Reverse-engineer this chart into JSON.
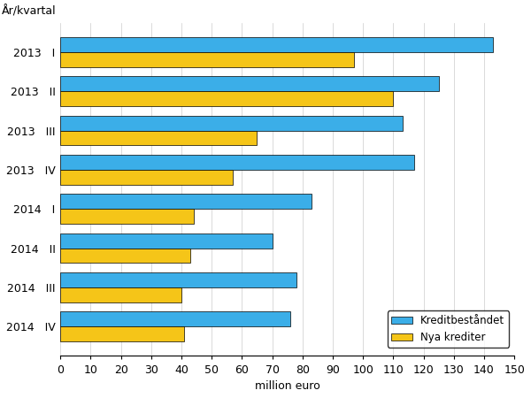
{
  "title_ylabel": "År/kvartal",
  "xlabel": "million euro",
  "categories": [
    [
      "2013",
      "I"
    ],
    [
      "2013",
      "II"
    ],
    [
      "2013",
      "III"
    ],
    [
      "2013",
      "IV"
    ],
    [
      "2014",
      "I"
    ],
    [
      "2014",
      "II"
    ],
    [
      "2014",
      "III"
    ],
    [
      "2014",
      "IV"
    ]
  ],
  "kreditbestandet": [
    143,
    125,
    113,
    117,
    83,
    70,
    78,
    76
  ],
  "nya_krediter": [
    97,
    110,
    65,
    57,
    44,
    43,
    40,
    41
  ],
  "color_blue": "#3BAEE8",
  "color_yellow": "#F5C518",
  "legend_labels": [
    "Kreditbeståndet",
    "Nya krediter"
  ],
  "xlim": [
    0,
    150
  ],
  "xticks": [
    0,
    10,
    20,
    30,
    40,
    50,
    60,
    70,
    80,
    90,
    100,
    110,
    120,
    130,
    140,
    150
  ],
  "figsize": [
    6.0,
    4.5
  ],
  "dpi": 100
}
